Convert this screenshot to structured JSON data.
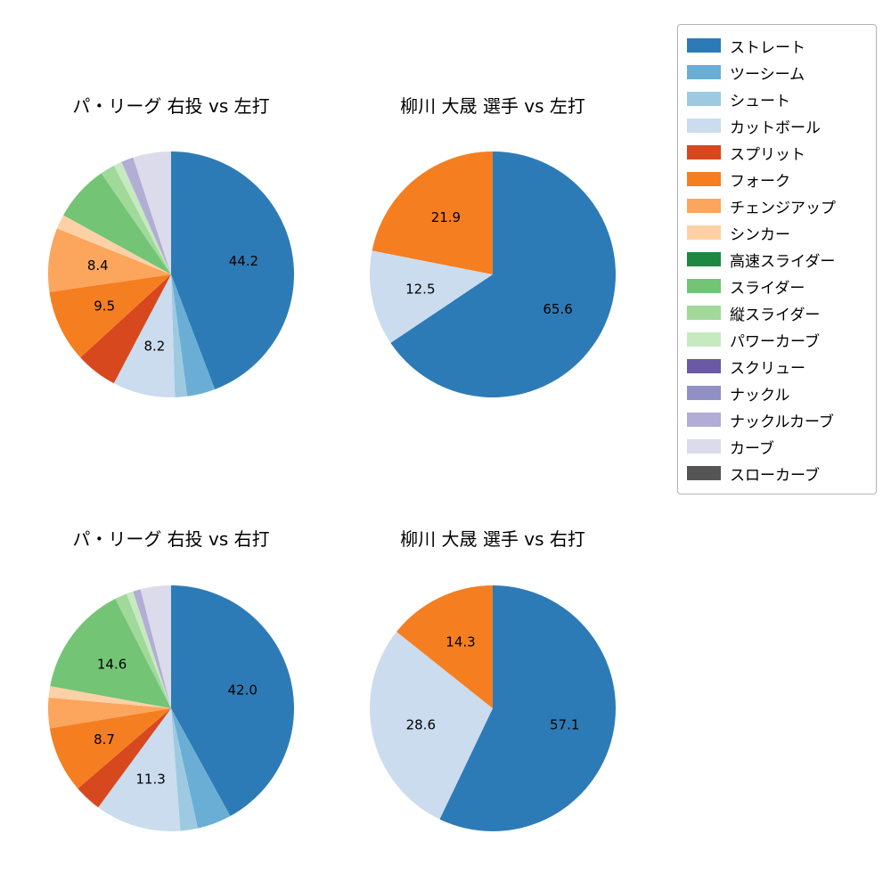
{
  "figure": {
    "background": "#ffffff"
  },
  "legend": {
    "items": [
      {
        "label": "ストレート",
        "color": "#2d7bb6"
      },
      {
        "label": "ツーシーム",
        "color": "#6aaed6"
      },
      {
        "label": "シュート",
        "color": "#9ecae1"
      },
      {
        "label": "カットボール",
        "color": "#cbdcee"
      },
      {
        "label": "スプリット",
        "color": "#d7481f"
      },
      {
        "label": "フォーク",
        "color": "#f57e21"
      },
      {
        "label": "チェンジアップ",
        "color": "#fba55d"
      },
      {
        "label": "シンカー",
        "color": "#fdd1a5"
      },
      {
        "label": "高速スライダー",
        "color": "#1f8741"
      },
      {
        "label": "スライダー",
        "color": "#74c476"
      },
      {
        "label": "縦スライダー",
        "color": "#a1d99b"
      },
      {
        "label": "パワーカーブ",
        "color": "#c7e9c0"
      },
      {
        "label": "スクリュー",
        "color": "#6a5aa5"
      },
      {
        "label": "ナックル",
        "color": "#918fc3"
      },
      {
        "label": "ナックルカーブ",
        "color": "#b2add5"
      },
      {
        "label": "カーブ",
        "color": "#dbdbeb"
      },
      {
        "label": "スローカーブ",
        "color": "#555555"
      }
    ]
  },
  "chart_data": [
    {
      "type": "pie",
      "title": "パ・リーグ 右投 vs 左打",
      "start_angle": 90,
      "direction": "clockwise",
      "unit": "percent",
      "slices": [
        {
          "name": "ストレート",
          "value": 44.2,
          "label": "44.2"
        },
        {
          "name": "ツーシーム",
          "value": 3.7,
          "label": null
        },
        {
          "name": "シュート",
          "value": 1.6,
          "label": null
        },
        {
          "name": "カットボール",
          "value": 8.2,
          "label": "8.2"
        },
        {
          "name": "スプリット",
          "value": 5.5,
          "label": null
        },
        {
          "name": "フォーク",
          "value": 9.5,
          "label": "9.5"
        },
        {
          "name": "チェンジアップ",
          "value": 8.4,
          "label": "8.4"
        },
        {
          "name": "シンカー",
          "value": 1.9,
          "label": null
        },
        {
          "name": "スライダー",
          "value": 7.4,
          "label": null
        },
        {
          "name": "縦スライダー",
          "value": 1.9,
          "label": null
        },
        {
          "name": "パワーカーブ",
          "value": 1.1,
          "label": null
        },
        {
          "name": "ナックルカーブ",
          "value": 1.6,
          "label": null
        },
        {
          "name": "カーブ",
          "value": 5.0,
          "label": null
        }
      ]
    },
    {
      "type": "pie",
      "title": "柳川 大晟 選手 vs 左打",
      "start_angle": 90,
      "direction": "clockwise",
      "unit": "percent",
      "slices": [
        {
          "name": "ストレート",
          "value": 65.6,
          "label": "65.6"
        },
        {
          "name": "カットボール",
          "value": 12.5,
          "label": "12.5"
        },
        {
          "name": "フォーク",
          "value": 21.9,
          "label": "21.9"
        }
      ]
    },
    {
      "type": "pie",
      "title": "パ・リーグ 右投 vs 右打",
      "start_angle": 90,
      "direction": "clockwise",
      "unit": "percent",
      "slices": [
        {
          "name": "ストレート",
          "value": 42.0,
          "label": "42.0"
        },
        {
          "name": "ツーシーム",
          "value": 4.5,
          "label": null
        },
        {
          "name": "シュート",
          "value": 2.3,
          "label": null
        },
        {
          "name": "カットボール",
          "value": 11.3,
          "label": "11.3"
        },
        {
          "name": "スプリット",
          "value": 3.6,
          "label": null
        },
        {
          "name": "フォーク",
          "value": 8.7,
          "label": "8.7"
        },
        {
          "name": "チェンジアップ",
          "value": 4.0,
          "label": null
        },
        {
          "name": "シンカー",
          "value": 1.5,
          "label": null
        },
        {
          "name": "スライダー",
          "value": 14.6,
          "label": "14.6"
        },
        {
          "name": "縦スライダー",
          "value": 1.6,
          "label": null
        },
        {
          "name": "パワーカーブ",
          "value": 0.9,
          "label": null
        },
        {
          "name": "ナックルカーブ",
          "value": 1.0,
          "label": null
        },
        {
          "name": "カーブ",
          "value": 4.0,
          "label": null
        }
      ]
    },
    {
      "type": "pie",
      "title": "柳川 大晟 選手 vs 右打",
      "start_angle": 90,
      "direction": "clockwise",
      "unit": "percent",
      "slices": [
        {
          "name": "ストレート",
          "value": 57.1,
          "label": "57.1"
        },
        {
          "name": "カットボール",
          "value": 28.6,
          "label": "28.6"
        },
        {
          "name": "フォーク",
          "value": 14.3,
          "label": "14.3"
        }
      ]
    }
  ]
}
